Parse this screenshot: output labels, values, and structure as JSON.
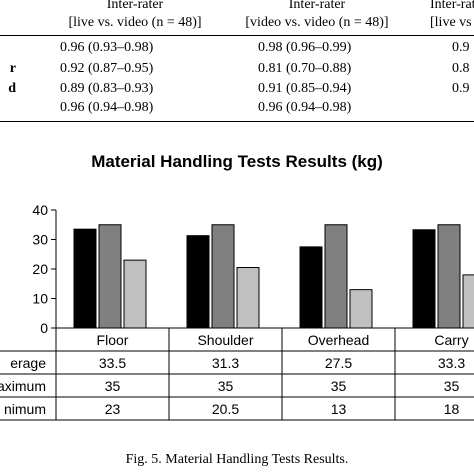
{
  "top_table": {
    "headers": [
      {
        "line1": "Inter-rater",
        "line2": "[live vs. video (n = 48)]"
      },
      {
        "line1": "Inter-rater",
        "line2": "[video vs. video (n = 48)]"
      },
      {
        "line1": "Inter-rater",
        "line2": "[live vs"
      }
    ],
    "rows": [
      {
        "label": "",
        "cells": [
          "0.96 (0.93–0.98)",
          "0.98 (0.96–0.99)",
          "0.9"
        ]
      },
      {
        "label": "r",
        "cells": [
          "0.92 (0.87–0.95)",
          "0.81 (0.70–0.88)",
          "0.8"
        ]
      },
      {
        "label": "d",
        "cells": [
          "0.89 (0.83–0.93)",
          "0.91 (0.85–0.94)",
          "0.9"
        ]
      },
      {
        "label": "",
        "cells": [
          "0.96 (0.94–0.98)",
          "0.96 (0.94–0.98)",
          ""
        ]
      }
    ]
  },
  "chart_data": {
    "type": "bar",
    "title": "Material Handling Tests Results (kg)",
    "categories": [
      "Floor",
      "Shoulder",
      "Overhead",
      "Carry"
    ],
    "series": [
      {
        "name": "Average",
        "label": "erage",
        "values": [
          33.5,
          31.3,
          27.5,
          33.3
        ],
        "color": "#000000"
      },
      {
        "name": "Maximum",
        "label": "aximum",
        "values": [
          35,
          35,
          35,
          35
        ],
        "color": "#808080"
      },
      {
        "name": "Minimum",
        "label": "nimum",
        "values": [
          23,
          20.5,
          13,
          18
        ],
        "color": "#c0c0c0"
      }
    ],
    "ylim": [
      0,
      40
    ],
    "yticks": [
      "0",
      "10",
      "20",
      "30",
      "40"
    ],
    "xlabel": "",
    "ylabel": "",
    "grid": false
  },
  "caption": "Fig. 5. Material Handling Tests Results."
}
